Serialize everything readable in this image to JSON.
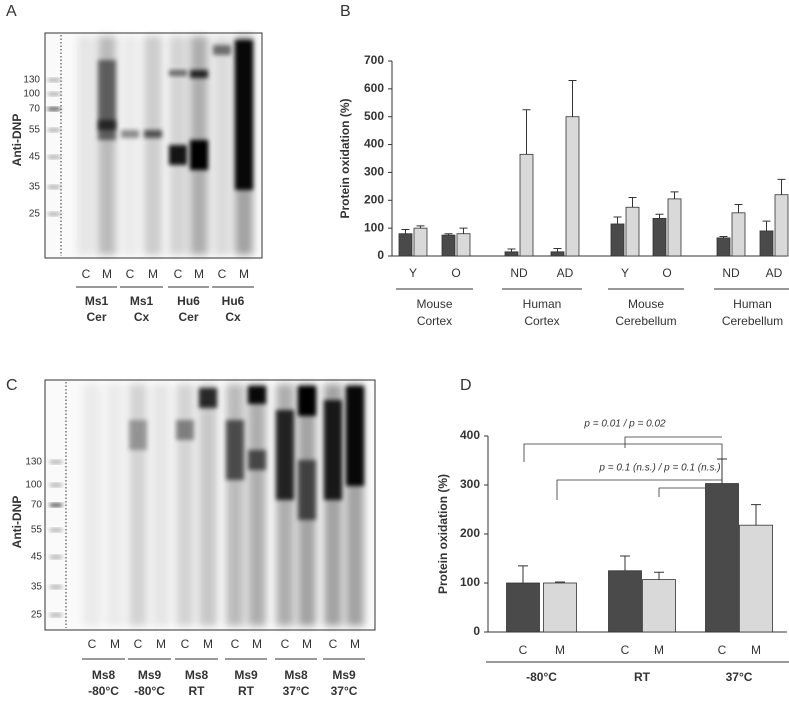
{
  "panel_labels": [
    "A",
    "B",
    "C",
    "D"
  ],
  "blot_a": {
    "ylabel": "Anti-DNP",
    "markers": [
      130,
      100,
      70,
      55,
      45,
      35,
      25
    ],
    "lanes": [
      "C",
      "M",
      "C",
      "M",
      "C",
      "M",
      "C",
      "M"
    ],
    "samples": [
      [
        "Ms1",
        "Cer"
      ],
      [
        "Ms1",
        "Cx"
      ],
      [
        "Hu6",
        "Cer"
      ],
      [
        "Hu6",
        "Cx"
      ]
    ]
  },
  "blot_c": {
    "ylabel": "Anti-DNP",
    "markers": [
      130,
      100,
      70,
      55,
      45,
      35,
      25
    ],
    "lanes": [
      "C",
      "M",
      "C",
      "M",
      "C",
      "M",
      "C",
      "M",
      "C",
      "M",
      "C",
      "M"
    ],
    "samples": [
      [
        "Ms8",
        "-80°C"
      ],
      [
        "Ms9",
        "-80°C"
      ],
      [
        "Ms8",
        "RT"
      ],
      [
        "Ms9",
        "RT"
      ],
      [
        "Ms8",
        "37°C"
      ],
      [
        "Ms9",
        "37°C"
      ]
    ]
  },
  "chart_data": [
    {
      "type": "bar",
      "ylabel": "Protein oxidation (%)",
      "ylim": [
        0,
        700
      ],
      "yticks": [
        0,
        100,
        200,
        300,
        400,
        500,
        600,
        700
      ],
      "categories": [
        "Y",
        "O",
        "ND",
        "AD",
        "Y",
        "O",
        "ND",
        "AD"
      ],
      "groups": [
        [
          "Mouse",
          "Cortex"
        ],
        [
          "Human",
          "Cortex"
        ],
        [
          "Mouse",
          "Cerebellum"
        ],
        [
          "Human",
          "Cerebellum"
        ]
      ],
      "series": [
        {
          "color": "#4a4a4a",
          "values": [
            80,
            75,
            15,
            15,
            115,
            135,
            65,
            90
          ],
          "errors": [
            15,
            5,
            10,
            12,
            25,
            15,
            5,
            35
          ]
        },
        {
          "color": "#d9d9d9",
          "values": [
            100,
            80,
            365,
            500,
            175,
            205,
            155,
            220
          ],
          "errors": [
            8,
            20,
            160,
            130,
            35,
            25,
            30,
            55
          ]
        }
      ]
    },
    {
      "type": "bar",
      "ylabel": "Protein oxidation (%)",
      "ylim": [
        0,
        400
      ],
      "yticks": [
        0,
        100,
        200,
        300,
        400
      ],
      "categories": [
        "C",
        "M",
        "C",
        "M",
        "C",
        "M"
      ],
      "groups": [
        [
          "-80°C"
        ],
        [
          "RT"
        ],
        [
          "37°C"
        ]
      ],
      "values": [
        100,
        100,
        125,
        107,
        303,
        218
      ],
      "errors": [
        35,
        2,
        30,
        15,
        50,
        42
      ],
      "colors": [
        "#4a4a4a",
        "#d9d9d9",
        "#4a4a4a",
        "#d9d9d9",
        "#4a4a4a",
        "#d9d9d9"
      ],
      "annotations": [
        "p = 0.01 / p = 0.02",
        "p = 0.1 (n.s.) / p = 0.1 (n.s.)"
      ]
    }
  ]
}
